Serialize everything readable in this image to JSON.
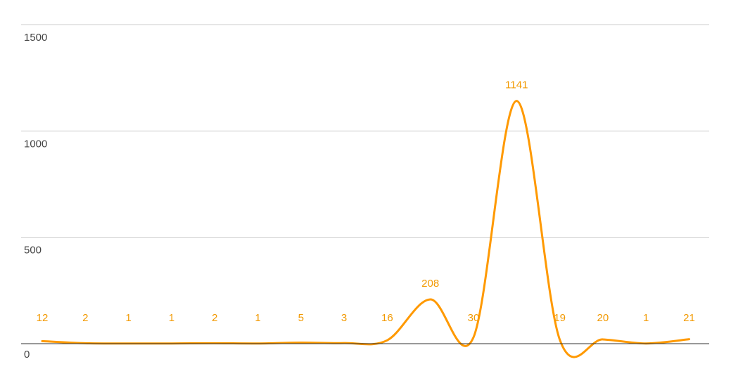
{
  "chart_data": {
    "type": "line",
    "title": "",
    "xlabel": "",
    "ylabel": "",
    "ylim": [
      0,
      1500
    ],
    "yticks": [
      "0",
      "500",
      "1000",
      "1500"
    ],
    "grid": true,
    "smooth": true,
    "colors": {
      "series": "#ff9900",
      "labels": "#f29900",
      "grid": "#cccccc",
      "baseline": "#333333",
      "ticks": "#444444"
    },
    "series": [
      {
        "values": [
          12,
          2,
          1,
          1,
          2,
          1,
          5,
          3,
          16,
          208,
          30,
          1141,
          19,
          20,
          1,
          21
        ],
        "labels": [
          "12",
          "2",
          "1",
          "1",
          "2",
          "1",
          "5",
          "3",
          "16",
          "208",
          "30",
          "1141",
          "19",
          "20",
          "1",
          "21"
        ]
      }
    ]
  }
}
